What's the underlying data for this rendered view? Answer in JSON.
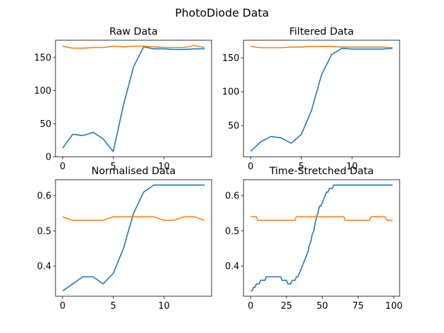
{
  "figure": {
    "suptitle": "PhotoDiode Data",
    "colors": {
      "series_1": "#1f77b4",
      "series_2": "#ff7f0e"
    }
  },
  "chart_data": [
    {
      "type": "line",
      "title": "Raw Data",
      "xlabel": "",
      "ylabel": "",
      "xlim": [
        -0.7,
        14.7
      ],
      "ylim": [
        0,
        176
      ],
      "xticks": [
        0,
        5,
        10
      ],
      "yticks": [
        0,
        50,
        100,
        150
      ],
      "xtick_labels": [
        "0",
        "5",
        "10"
      ],
      "ytick_labels": [
        "0",
        "50",
        "100",
        "150"
      ],
      "x": [
        0,
        1,
        2,
        3,
        4,
        5,
        6,
        7,
        8,
        9,
        10,
        11,
        12,
        13,
        14
      ],
      "series": [
        {
          "color": "#1f77b4",
          "values": [
            13,
            34,
            32,
            37,
            27,
            8,
            78,
            136,
            166,
            163,
            163,
            162,
            162,
            163,
            163
          ]
        },
        {
          "color": "#ff7f0e",
          "values": [
            167,
            164,
            164,
            165,
            165,
            167,
            166,
            167,
            167,
            166,
            165,
            165,
            165,
            168,
            165
          ]
        }
      ]
    },
    {
      "type": "line",
      "title": "Filtered Data",
      "xlabel": "",
      "ylabel": "",
      "xlim": [
        -0.7,
        14.7
      ],
      "ylim": [
        4,
        176
      ],
      "xticks": [
        0,
        5,
        10
      ],
      "yticks": [
        50,
        100,
        150
      ],
      "xtick_labels": [
        "0",
        "5",
        "10"
      ],
      "ytick_labels": [
        "50",
        "100",
        "150"
      ],
      "x": [
        0,
        1,
        2,
        3,
        4,
        5,
        6,
        7,
        8,
        9,
        10,
        11,
        12,
        13,
        14
      ],
      "series": [
        {
          "color": "#1f77b4",
          "values": [
            12,
            26,
            34,
            32,
            24,
            37,
            72,
            125,
            155,
            164,
            163,
            163,
            163,
            163,
            164
          ]
        },
        {
          "color": "#ff7f0e",
          "values": [
            167,
            165,
            165,
            165,
            166,
            166,
            167,
            167,
            167,
            166,
            166,
            166,
            166,
            166,
            165
          ]
        }
      ]
    },
    {
      "type": "line",
      "title": "Normalised Data",
      "xlabel": "",
      "ylabel": "",
      "xlim": [
        -0.7,
        14.7
      ],
      "ylim": [
        0.315,
        0.645
      ],
      "xticks": [
        0,
        5,
        10
      ],
      "yticks": [
        0.4,
        0.5,
        0.6
      ],
      "xtick_labels": [
        "0",
        "5",
        "10"
      ],
      "ytick_labels": [
        "0.4",
        "0.5",
        "0.6"
      ],
      "x": [
        0,
        1,
        2,
        3,
        4,
        5,
        6,
        7,
        8,
        9,
        10,
        11,
        12,
        13,
        14
      ],
      "series": [
        {
          "color": "#1f77b4",
          "values": [
            0.33,
            0.35,
            0.37,
            0.37,
            0.35,
            0.38,
            0.45,
            0.55,
            0.61,
            0.63,
            0.63,
            0.63,
            0.63,
            0.63,
            0.63
          ]
        },
        {
          "color": "#ff7f0e",
          "values": [
            0.54,
            0.53,
            0.53,
            0.53,
            0.53,
            0.54,
            0.54,
            0.54,
            0.54,
            0.54,
            0.53,
            0.53,
            0.54,
            0.54,
            0.53
          ]
        }
      ]
    },
    {
      "type": "line",
      "title": "Time-Stretched Data",
      "xlabel": "",
      "ylabel": "",
      "xlim": [
        -4.95,
        103.95
      ],
      "ylim": [
        0.315,
        0.645
      ],
      "xticks": [
        0,
        25,
        50,
        75,
        100
      ],
      "yticks": [
        0.4,
        0.5,
        0.6
      ],
      "xtick_labels": [
        "0",
        "25",
        "50",
        "75",
        "100"
      ],
      "ytick_labels": [
        "0.4",
        "0.5",
        "0.6"
      ],
      "x": [
        0,
        1,
        2,
        3,
        4,
        5,
        6,
        7,
        8,
        9,
        10,
        11,
        12,
        13,
        14,
        15,
        16,
        17,
        18,
        19,
        20,
        21,
        22,
        23,
        24,
        25,
        26,
        27,
        28,
        29,
        30,
        31,
        32,
        33,
        34,
        35,
        36,
        37,
        38,
        39,
        40,
        41,
        42,
        43,
        44,
        45,
        46,
        47,
        48,
        49,
        50,
        51,
        52,
        53,
        54,
        55,
        56,
        57,
        58,
        59,
        60,
        61,
        62,
        63,
        64,
        65,
        66,
        67,
        68,
        69,
        70,
        71,
        72,
        73,
        74,
        75,
        76,
        77,
        78,
        79,
        80,
        81,
        82,
        83,
        84,
        85,
        86,
        87,
        88,
        89,
        90,
        91,
        92,
        93,
        94,
        95,
        96,
        97,
        98,
        99
      ],
      "series": [
        {
          "color": "#1f77b4",
          "values": [
            0.33,
            0.33,
            0.34,
            0.34,
            0.35,
            0.35,
            0.35,
            0.36,
            0.36,
            0.36,
            0.36,
            0.37,
            0.37,
            0.37,
            0.37,
            0.37,
            0.37,
            0.37,
            0.37,
            0.37,
            0.37,
            0.37,
            0.36,
            0.36,
            0.36,
            0.36,
            0.35,
            0.35,
            0.35,
            0.36,
            0.36,
            0.36,
            0.37,
            0.37,
            0.38,
            0.39,
            0.4,
            0.41,
            0.42,
            0.43,
            0.44,
            0.46,
            0.47,
            0.49,
            0.5,
            0.52,
            0.54,
            0.55,
            0.57,
            0.57,
            0.58,
            0.59,
            0.6,
            0.61,
            0.61,
            0.62,
            0.62,
            0.62,
            0.63,
            0.63,
            0.63,
            0.63,
            0.63,
            0.63,
            0.63,
            0.63,
            0.63,
            0.63,
            0.63,
            0.63,
            0.63,
            0.63,
            0.63,
            0.63,
            0.63,
            0.63,
            0.63,
            0.63,
            0.63,
            0.63,
            0.63,
            0.63,
            0.63,
            0.63,
            0.63,
            0.63,
            0.63,
            0.63,
            0.63,
            0.63,
            0.63,
            0.63,
            0.63,
            0.63,
            0.63,
            0.63,
            0.63,
            0.63,
            0.63,
            0.63
          ]
        },
        {
          "color": "#ff7f0e",
          "values": [
            0.54,
            0.54,
            0.54,
            0.54,
            0.54,
            0.53,
            0.53,
            0.53,
            0.53,
            0.53,
            0.53,
            0.53,
            0.53,
            0.53,
            0.53,
            0.53,
            0.53,
            0.53,
            0.53,
            0.53,
            0.53,
            0.53,
            0.53,
            0.53,
            0.53,
            0.53,
            0.53,
            0.53,
            0.53,
            0.53,
            0.53,
            0.53,
            0.54,
            0.54,
            0.54,
            0.54,
            0.54,
            0.54,
            0.54,
            0.54,
            0.54,
            0.54,
            0.54,
            0.54,
            0.54,
            0.54,
            0.54,
            0.54,
            0.54,
            0.54,
            0.54,
            0.54,
            0.54,
            0.54,
            0.54,
            0.54,
            0.54,
            0.54,
            0.54,
            0.54,
            0.54,
            0.54,
            0.54,
            0.54,
            0.54,
            0.54,
            0.53,
            0.53,
            0.53,
            0.53,
            0.53,
            0.53,
            0.53,
            0.53,
            0.53,
            0.53,
            0.53,
            0.53,
            0.53,
            0.53,
            0.53,
            0.53,
            0.53,
            0.53,
            0.54,
            0.54,
            0.54,
            0.54,
            0.54,
            0.54,
            0.54,
            0.54,
            0.54,
            0.54,
            0.54,
            0.53,
            0.53,
            0.53,
            0.53,
            0.53
          ]
        }
      ]
    }
  ]
}
